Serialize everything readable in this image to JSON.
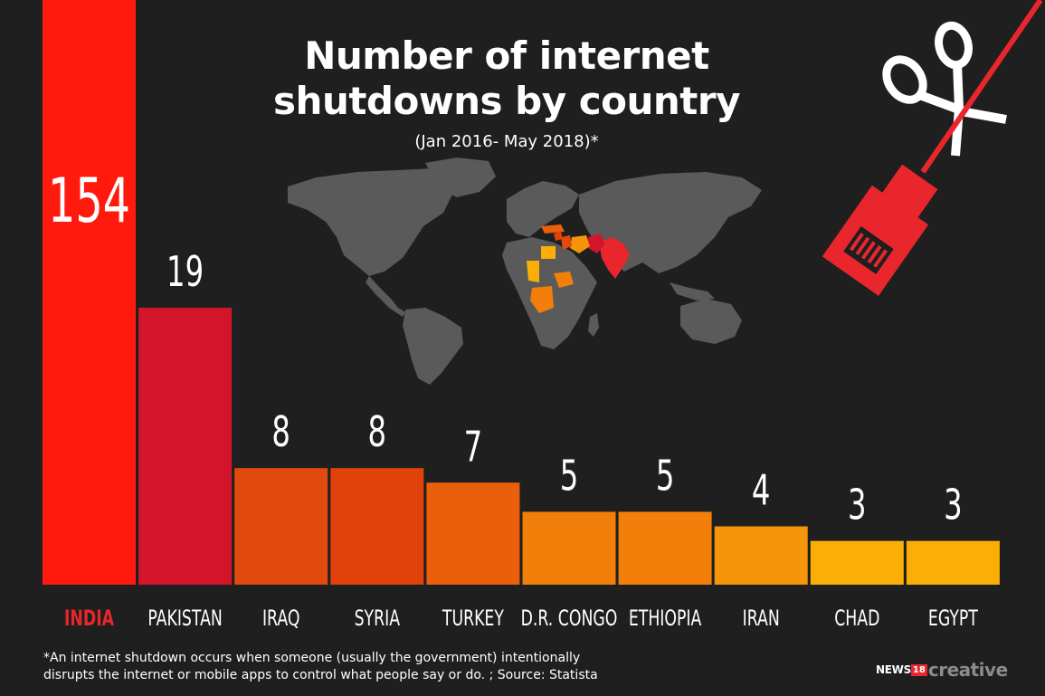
{
  "title_line1": "Number of internet",
  "title_line2": "shutdowns by country",
  "subtitle": "(Jan 2016- May 2018)*",
  "footnote_line1": "*An internet shutdown occurs when someone (usually the government) intentionally",
  "footnote_line2": "disrupts the internet or mobile apps to control what people say or do. ; Source: Statista",
  "brand": {
    "news": "NEWS",
    "number": "18",
    "creative": "creative"
  },
  "icons": [
    "scissors-icon",
    "ethernet-cable-icon",
    "world-map"
  ],
  "colors": {
    "background": "#1f1f1f",
    "highlight_label": "#e8262b",
    "map_land": "#5a5a5a",
    "cable": "#e8262b"
  },
  "chart_data": {
    "type": "bar",
    "categories": [
      "INDIA",
      "PAKISTAN",
      "IRAQ",
      "SYRIA",
      "TURKEY",
      "D.R. CONGO",
      "ETHIOPIA",
      "IRAN",
      "CHAD",
      "EGYPT"
    ],
    "values": [
      154,
      19,
      8,
      8,
      7,
      5,
      5,
      4,
      3,
      3
    ],
    "data_labels": [
      "154",
      "19",
      "8",
      "8",
      "7",
      "5",
      "5",
      "4",
      "3",
      "3"
    ],
    "colors": [
      "#ff1a0d",
      "#d3142b",
      "#e14a0d",
      "#e1420a",
      "#ec5f0a",
      "#f27f0a",
      "#f37f0a",
      "#f6940a",
      "#fbaf06",
      "#fbaf06"
    ],
    "highlighted_category": "INDIA",
    "title": "Number of internet shutdowns by country",
    "xlabel": "",
    "ylabel": "",
    "grid": false,
    "legend": "none",
    "axis_scale": "not to scale"
  }
}
